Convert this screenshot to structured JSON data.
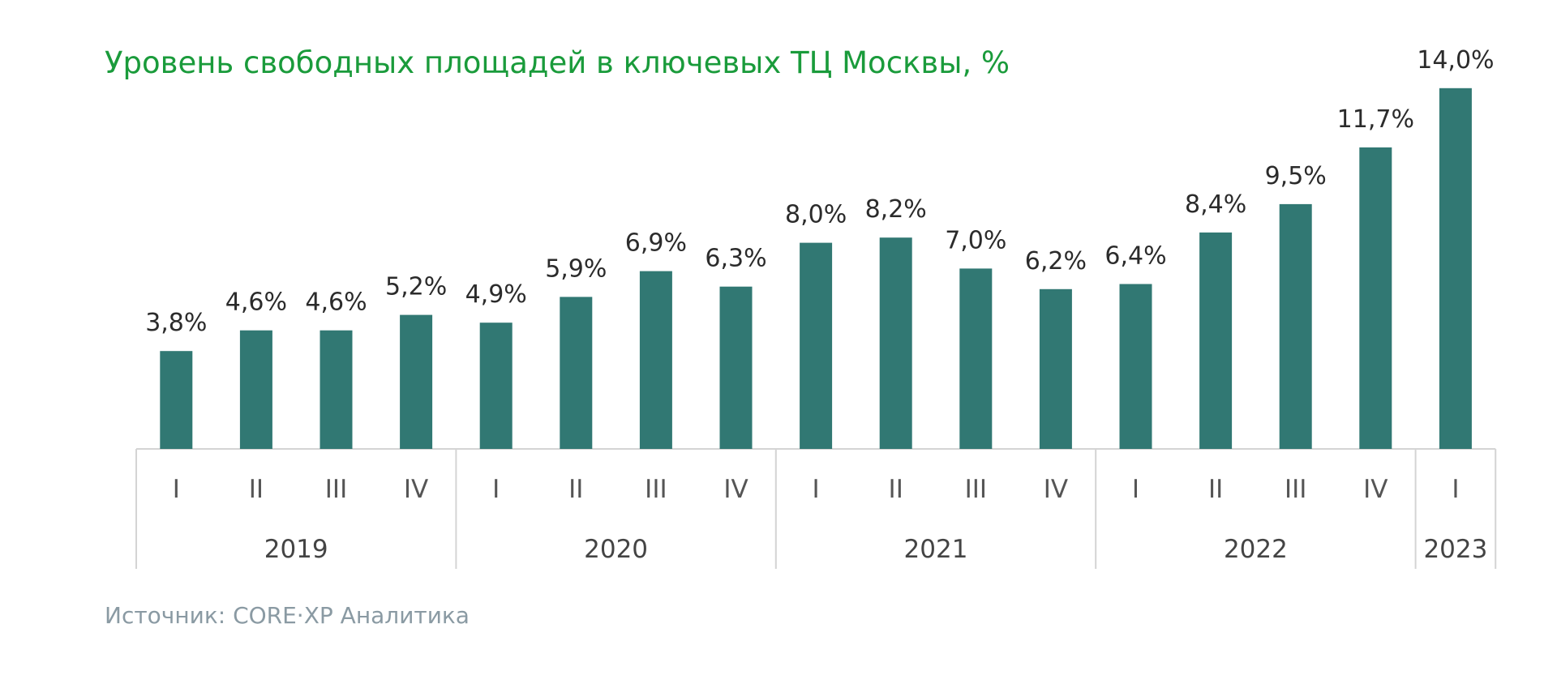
{
  "title": "Уровень свободных площадей в ключевых ТЦ Москвы, %",
  "source": "Источник: CORE·XP Аналитика",
  "colors": {
    "title": "#1a9b3b",
    "bar": "#317873",
    "source": "#8a9aa3",
    "axis": "#d4d4d4"
  },
  "chart_data": {
    "type": "bar",
    "title": "Уровень свободных площадей в ключевых ТЦ Москвы, %",
    "xlabel": "",
    "ylabel": "",
    "ylim": [
      0,
      14.5
    ],
    "grid": false,
    "legend": "none",
    "categories": [
      "I",
      "II",
      "III",
      "IV",
      "I",
      "II",
      "III",
      "IV",
      "I",
      "II",
      "III",
      "IV",
      "I",
      "II",
      "III",
      "IV",
      "I"
    ],
    "values": [
      3.8,
      4.6,
      4.6,
      5.2,
      4.9,
      5.9,
      6.9,
      6.3,
      8.0,
      8.2,
      7.0,
      6.2,
      6.4,
      8.4,
      9.5,
      11.7,
      14.0
    ],
    "labels": [
      "3,8%",
      "4,6%",
      "4,6%",
      "5,2%",
      "4,9%",
      "5,9%",
      "6,9%",
      "6,3%",
      "8,0%",
      "8,2%",
      "7,0%",
      "6,2%",
      "6,4%",
      "8,4%",
      "9,5%",
      "11,7%",
      "14,0%"
    ],
    "groups": [
      {
        "year": "2019",
        "count": 4
      },
      {
        "year": "2020",
        "count": 4
      },
      {
        "year": "2021",
        "count": 4
      },
      {
        "year": "2022",
        "count": 4
      },
      {
        "year": "2023",
        "count": 1
      }
    ]
  }
}
